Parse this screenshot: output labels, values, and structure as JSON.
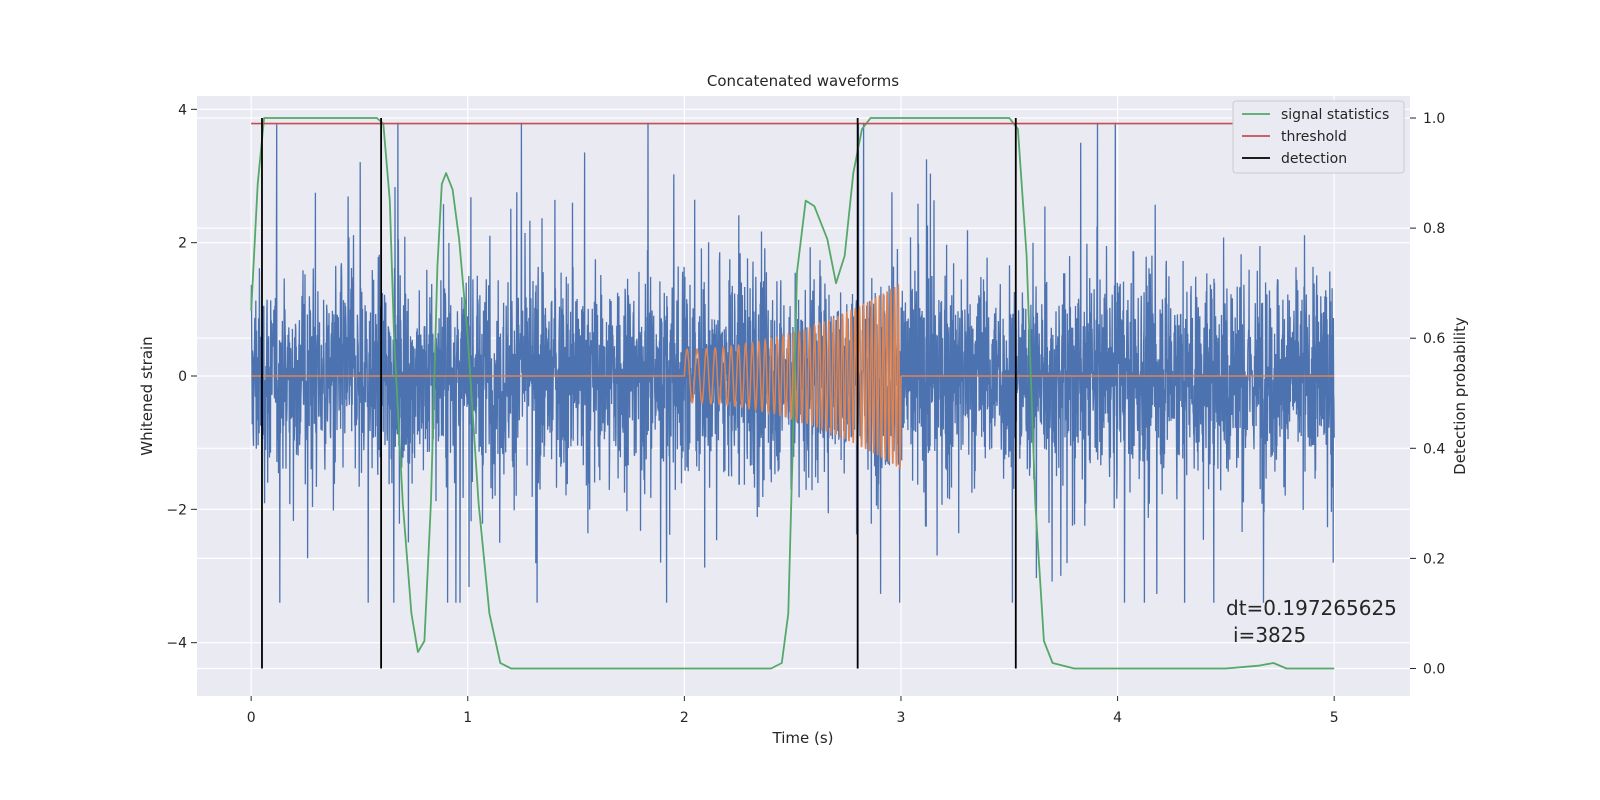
{
  "chart_data": {
    "type": "line",
    "title": "Concatenated waveforms",
    "xlabel": "Time (s)",
    "ylabel": "Whitened strain",
    "ylabel_right": "Detection probability",
    "xlim": [
      -0.25,
      5.35
    ],
    "ylim": [
      -4.8,
      4.2
    ],
    "ylim_right": [
      -0.05,
      1.04
    ],
    "xticks": [
      0,
      1,
      2,
      3,
      4,
      5
    ],
    "yticks": [
      -4,
      -2,
      0,
      2,
      4
    ],
    "yticks_right": [
      0.0,
      0.2,
      0.4,
      0.6,
      0.8,
      1.0
    ],
    "grid": true,
    "legend_position": "top-right",
    "colors": {
      "strain": "#4c72b0",
      "template": "#dd8452",
      "signal_statistics": "#55a868",
      "threshold": "#c44e52",
      "detection": "#000000",
      "background": "#eaeaf2",
      "grid": "#ffffff"
    },
    "strain_noise": {
      "x_range": [
        0,
        5
      ],
      "amplitude_range": [
        -3.4,
        3.8
      ]
    },
    "template_chirp": {
      "x_range": [
        2.0,
        3.0
      ],
      "amplitude_start": 0.4,
      "amplitude_end": 1.4
    },
    "series": [
      {
        "name": "signal statistics",
        "axis": "right",
        "x": [
          0.0,
          0.03,
          0.06,
          0.1,
          0.2,
          0.4,
          0.58,
          0.61,
          0.64,
          0.66,
          0.7,
          0.74,
          0.77,
          0.8,
          0.83,
          0.86,
          0.88,
          0.9,
          0.93,
          0.96,
          1.0,
          1.05,
          1.1,
          1.15,
          1.2,
          1.5,
          2.0,
          2.4,
          2.45,
          2.48,
          2.5,
          2.52,
          2.56,
          2.6,
          2.66,
          2.7,
          2.74,
          2.78,
          2.82,
          2.86,
          2.9,
          3.0,
          3.3,
          3.5,
          3.54,
          3.58,
          3.62,
          3.66,
          3.7,
          3.8,
          4.0,
          4.2,
          4.5,
          4.65,
          4.72,
          4.78,
          5.0
        ],
        "y": [
          0.65,
          0.88,
          1.0,
          1.0,
          1.0,
          1.0,
          1.0,
          0.99,
          0.85,
          0.6,
          0.3,
          0.1,
          0.03,
          0.05,
          0.3,
          0.73,
          0.88,
          0.9,
          0.87,
          0.78,
          0.6,
          0.3,
          0.1,
          0.01,
          0.0,
          0.0,
          0.0,
          0.0,
          0.01,
          0.1,
          0.4,
          0.72,
          0.85,
          0.84,
          0.78,
          0.7,
          0.75,
          0.9,
          0.98,
          1.0,
          1.0,
          1.0,
          1.0,
          1.0,
          0.98,
          0.75,
          0.3,
          0.05,
          0.01,
          0.0,
          0.0,
          0.0,
          0.0,
          0.005,
          0.01,
          0.0,
          0.0
        ]
      },
      {
        "name": "threshold",
        "axis": "right",
        "x": [
          0.0,
          5.0
        ],
        "y": [
          0.99,
          0.99
        ]
      },
      {
        "name": "detection",
        "axis": "right",
        "x": [
          0.05,
          0.6,
          2.8,
          3.53
        ],
        "y_range": [
          0.0,
          1.0
        ]
      }
    ],
    "annotation": {
      "line1": "dt=0.197265625",
      "line2": "i=3825"
    }
  }
}
